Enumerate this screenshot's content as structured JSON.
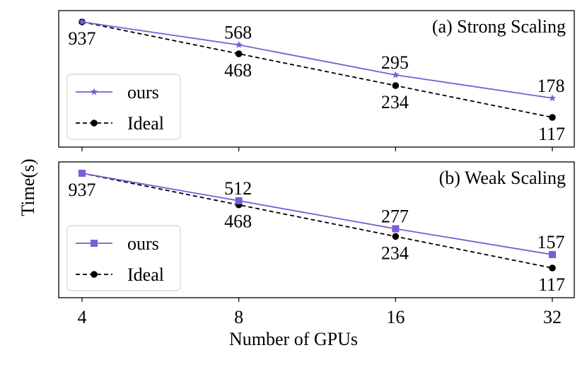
{
  "figure": {
    "ylabel": "Time(s)",
    "xlabel": "Number of GPUs",
    "xticks": [
      "4",
      "8",
      "16",
      "32"
    ]
  },
  "colors": {
    "ours": "#7b5cd6",
    "ideal": "#000000"
  },
  "chart_data": [
    {
      "type": "line",
      "title": "(a) Strong Scaling",
      "categories": [
        "4",
        "8",
        "16",
        "32"
      ],
      "x_scale": "log2",
      "y_scale": "log",
      "ylim": [
        100,
        1000
      ],
      "xlabel": "Number of GPUs",
      "ylabel": "Time(s)",
      "grid": false,
      "legend": "lower-left",
      "series": [
        {
          "name": "ours",
          "marker": "star",
          "line": "solid",
          "color": "#7b5cd6",
          "values": [
            937,
            568,
            295,
            178
          ],
          "labels": [
            "937",
            "568",
            "295",
            "178"
          ]
        },
        {
          "name": "Ideal",
          "marker": "circle",
          "line": "dashed",
          "color": "#000000",
          "values": [
            937,
            468,
            234,
            117
          ],
          "labels": [
            "937",
            "468",
            "234",
            "117"
          ]
        }
      ]
    },
    {
      "type": "line",
      "title": "(b) Weak Scaling",
      "categories": [
        "4",
        "8",
        "16",
        "32"
      ],
      "x_scale": "log2",
      "y_scale": "log",
      "ylim": [
        100,
        1000
      ],
      "xlabel": "Number of GPUs",
      "ylabel": "Time(s)",
      "grid": false,
      "legend": "lower-left",
      "series": [
        {
          "name": "ours",
          "marker": "square",
          "line": "solid",
          "color": "#7b5cd6",
          "values": [
            937,
            512,
            277,
            157
          ],
          "labels": [
            "937",
            "512",
            "277",
            "157"
          ]
        },
        {
          "name": "Ideal",
          "marker": "circle",
          "line": "dashed",
          "color": "#000000",
          "values": [
            937,
            468,
            234,
            117
          ],
          "labels": [
            "937",
            "468",
            "234",
            "117"
          ]
        }
      ]
    }
  ]
}
